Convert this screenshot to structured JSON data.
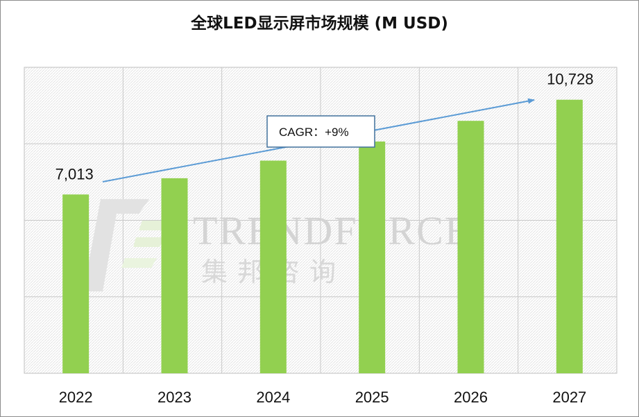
{
  "chart_data": {
    "type": "bar",
    "title": "全球LED显示屏市场规模 (M USD)",
    "categories": [
      "2022",
      "2023",
      "2024",
      "2025",
      "2026",
      "2027"
    ],
    "values": [
      7013,
      7650,
      8340,
      9090,
      9900,
      10728
    ],
    "data_labels": {
      "2022": "7,013",
      "2027": "10,728"
    },
    "ylim": [
      0,
      12000
    ],
    "grid": true,
    "annotation": "CAGR：+9%",
    "bar_color": "#92d050",
    "arrow_color": "#5b9bd5"
  },
  "watermark": {
    "text": "TRENDFORCE",
    "subtext": "集邦咨询"
  }
}
